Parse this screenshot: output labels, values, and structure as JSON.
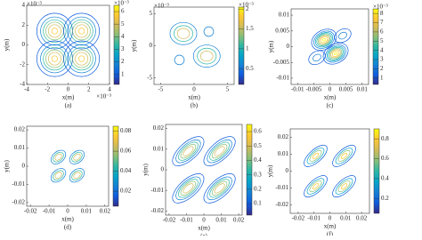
{
  "chart_data": [
    {
      "type": "contour",
      "label": "(a)",
      "xlabel": "x(m)",
      "ylabel": "y(m)",
      "x_exponent": "×10⁻³",
      "y_exponent": "×10⁻³",
      "c_exponent": "×10⁻³",
      "xlim": [
        -4,
        4
      ],
      "ylim": [
        -4,
        4
      ],
      "xticks": [
        -4,
        -2,
        0,
        2,
        4
      ],
      "yticks": [
        -4,
        -2,
        0,
        2,
        4
      ],
      "clim": [
        0.2,
        6.5
      ],
      "cticks": [
        1,
        2,
        3,
        4,
        5,
        6
      ],
      "lobes": [
        {
          "x": -1.3,
          "y": 1.4,
          "peak": 6.3,
          "spread": 0.9,
          "aspect": 1,
          "angle": 0
        },
        {
          "x": 1.3,
          "y": 1.4,
          "peak": 6.3,
          "spread": 0.9,
          "aspect": 1,
          "angle": 0
        },
        {
          "x": -1.3,
          "y": -1.4,
          "peak": 6.3,
          "spread": 0.9,
          "aspect": 1,
          "angle": 0
        },
        {
          "x": 1.3,
          "y": -1.4,
          "peak": 6.3,
          "spread": 0.9,
          "aspect": 1,
          "angle": 0
        }
      ]
    },
    {
      "type": "contour",
      "label": "(b)",
      "xlabel": "x(m)",
      "ylabel": "y(m)",
      "y_exponent": "×10⁻³",
      "c_exponent": "×10⁻³",
      "xlim": [
        -6,
        6
      ],
      "ylim": [
        -6,
        6
      ],
      "xticks": [
        -5,
        0,
        5
      ],
      "yticks": [
        -5,
        0,
        5
      ],
      "clim": [
        0.1,
        2.05
      ],
      "cticks": [
        0.5,
        1,
        1.5,
        2
      ],
      "lobes": [
        {
          "x": -1.6,
          "y": 1.9,
          "peak": 2,
          "spread": 1.1,
          "aspect": 1.2,
          "angle": 0
        },
        {
          "x": 1.9,
          "y": -1.6,
          "peak": 2,
          "spread": 1.1,
          "aspect": 1.2,
          "angle": 0
        },
        {
          "x": 2.2,
          "y": 2.2,
          "peak": 0.6,
          "spread": 1.2,
          "aspect": 1,
          "angle": 0
        },
        {
          "x": -2.2,
          "y": -2.2,
          "peak": 0.6,
          "spread": 1.2,
          "aspect": 1,
          "angle": 0
        }
      ]
    },
    {
      "type": "contour",
      "label": "(c)",
      "xlabel": "x(m)",
      "ylabel": "y(m)",
      "c_exponent": "×10⁻³",
      "xlim": [
        -0.012,
        0.012
      ],
      "ylim": [
        -0.012,
        0.012
      ],
      "xticks": [
        -0.01,
        -0.005,
        0,
        0.005,
        0.01
      ],
      "yticks": [
        -0.01,
        -0.005,
        0,
        0.005,
        0.01
      ],
      "clim": [
        0.3,
        8.5
      ],
      "cticks": [
        1,
        2,
        3,
        4,
        5,
        6,
        7,
        8
      ],
      "lobes": [
        {
          "x": -0.0018,
          "y": 0.0022,
          "peak": 8.2,
          "spread": 0.0017,
          "aspect": 1.4,
          "angle": -30
        },
        {
          "x": 0.0018,
          "y": -0.0022,
          "peak": 8.2,
          "spread": 0.0017,
          "aspect": 1.4,
          "angle": -30
        },
        {
          "x": 0.004,
          "y": 0.0035,
          "peak": 2.5,
          "spread": 0.0017,
          "aspect": 1.4,
          "angle": -30
        },
        {
          "x": -0.004,
          "y": -0.0035,
          "peak": 2.5,
          "spread": 0.0017,
          "aspect": 1.4,
          "angle": -30
        }
      ]
    },
    {
      "type": "contour",
      "label": "(d)",
      "xlabel": "x(m)",
      "ylabel": "y(m)",
      "xlim": [
        -0.022,
        0.022
      ],
      "ylim": [
        -0.022,
        0.022
      ],
      "xticks": [
        -0.02,
        -0.01,
        0,
        0.01,
        0.02
      ],
      "yticks": [
        -0.02,
        -0.01,
        0,
        0.01,
        0.02
      ],
      "clim": [
        0.005,
        0.085
      ],
      "cticks": [
        0.02,
        0.04,
        0.06,
        0.08
      ],
      "lobes": [
        {
          "x": -0.005,
          "y": 0.005,
          "peak": 0.08,
          "spread": 0.0022,
          "aspect": 1.5,
          "angle": -40
        },
        {
          "x": 0.005,
          "y": 0.005,
          "peak": 0.08,
          "spread": 0.0022,
          "aspect": 1.5,
          "angle": -40
        },
        {
          "x": -0.005,
          "y": -0.005,
          "peak": 0.08,
          "spread": 0.0022,
          "aspect": 1.5,
          "angle": -40
        },
        {
          "x": 0.005,
          "y": -0.005,
          "peak": 0.08,
          "spread": 0.0022,
          "aspect": 1.5,
          "angle": -40
        }
      ]
    },
    {
      "type": "contour",
      "label": "(e)",
      "xlabel": "x(m)",
      "ylabel": "y(m)",
      "xlim": [
        -0.022,
        0.022
      ],
      "ylim": [
        -0.022,
        0.022
      ],
      "xticks": [
        -0.02,
        -0.01,
        0,
        0.01,
        0.02
      ],
      "yticks": [
        -0.02,
        -0.01,
        0,
        0.01,
        0.02
      ],
      "clim": [
        0.02,
        0.65
      ],
      "cticks": [
        0.1,
        0.2,
        0.3,
        0.4,
        0.5,
        0.6
      ],
      "lobes": [
        {
          "x": -0.009,
          "y": 0.009,
          "peak": 0.6,
          "spread": 0.004,
          "aspect": 2.2,
          "angle": -42
        },
        {
          "x": 0.009,
          "y": 0.009,
          "peak": 0.6,
          "spread": 0.004,
          "aspect": 2.2,
          "angle": -42
        },
        {
          "x": -0.009,
          "y": -0.009,
          "peak": 0.6,
          "spread": 0.004,
          "aspect": 2.2,
          "angle": -42
        },
        {
          "x": 0.009,
          "y": -0.009,
          "peak": 0.6,
          "spread": 0.004,
          "aspect": 2.2,
          "angle": -42
        }
      ]
    },
    {
      "type": "contour",
      "label": "(f)",
      "xlabel": "x(m)",
      "ylabel": "y(m)",
      "xlim": [
        -0.025,
        0.025
      ],
      "ylim": [
        -0.025,
        0.025
      ],
      "xticks": [
        -0.02,
        -0.01,
        0,
        0.01,
        0.02
      ],
      "yticks": [
        -0.02,
        -0.01,
        0,
        0.01,
        0.02
      ],
      "clim": [
        0.05,
        0.9
      ],
      "cticks": [
        0.2,
        0.4,
        0.6,
        0.8
      ],
      "lobes": [
        {
          "x": -0.009,
          "y": 0.009,
          "peak": 0.88,
          "spread": 0.0035,
          "aspect": 2.3,
          "angle": -42
        },
        {
          "x": 0.009,
          "y": 0.009,
          "peak": 0.88,
          "spread": 0.0035,
          "aspect": 2.3,
          "angle": -42
        },
        {
          "x": -0.009,
          "y": -0.009,
          "peak": 0.88,
          "spread": 0.0035,
          "aspect": 2.3,
          "angle": -42
        },
        {
          "x": 0.009,
          "y": -0.009,
          "peak": 0.88,
          "spread": 0.0035,
          "aspect": 2.3,
          "angle": -42
        }
      ]
    }
  ]
}
